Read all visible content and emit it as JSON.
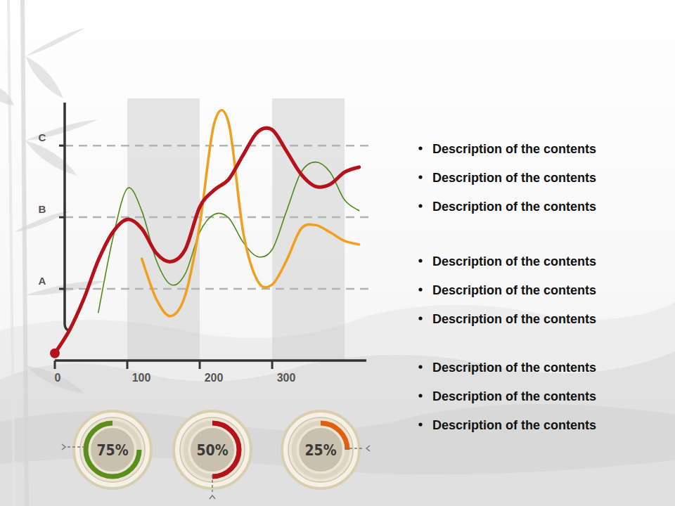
{
  "chart_data": [
    {
      "type": "line",
      "x": [
        0,
        20,
        40,
        60,
        80,
        100,
        120,
        140,
        160,
        180,
        200,
        220,
        240,
        260,
        280,
        300,
        320,
        340,
        360,
        380,
        400,
        420
      ],
      "xlim": [
        0,
        430
      ],
      "xticks": [
        0,
        100,
        200,
        300
      ],
      "ylim": [
        0,
        3.6
      ],
      "yticks": [
        {
          "value": 1,
          "label": "A"
        },
        {
          "value": 2,
          "label": "B"
        },
        {
          "value": 3,
          "label": "C"
        }
      ],
      "grid": true,
      "series": [
        {
          "color": "#b5121b",
          "marker": "start",
          "values": [
            0.1,
            0.42,
            0.86,
            1.4,
            1.79,
            1.97,
            1.84,
            1.5,
            1.38,
            1.55,
            2.14,
            2.38,
            2.53,
            2.87,
            3.19,
            3.22,
            2.92,
            2.6,
            2.43,
            2.46,
            2.63,
            2.7
          ]
        },
        {
          "color": "#4f8a1a",
          "values": [
            null,
            null,
            null,
            0.67,
            1.7,
            2.4,
            2.09,
            1.4,
            1.06,
            1.21,
            1.79,
            2.04,
            1.99,
            1.65,
            1.45,
            1.55,
            2.09,
            2.63,
            2.77,
            2.63,
            2.24,
            2.09
          ]
        },
        {
          "color": "#f0a020",
          "values": [
            null,
            null,
            null,
            null,
            null,
            null,
            1.42,
            0.86,
            0.62,
            0.91,
            1.89,
            3.31,
            3.31,
            1.79,
            1.11,
            1.06,
            1.4,
            1.84,
            1.89,
            1.79,
            1.67,
            1.62
          ]
        }
      ]
    },
    {
      "type": "gauge",
      "ylim": [
        0,
        100
      ],
      "values": [
        75,
        50,
        25
      ],
      "value_labels": [
        "75%",
        "50%",
        "25%"
      ],
      "colors": [
        "#5a8f1c",
        "#b5121b",
        "#e0600f"
      ],
      "data_labels": true
    }
  ],
  "text": {
    "bullets": [
      [
        "Description of the contents",
        "Description of the contents",
        "Description of the contents"
      ],
      [
        "Description of the contents",
        "Description of the contents",
        "Description of the contents"
      ],
      [
        "Description of the contents",
        "Description of the contents",
        "Description of the contents"
      ]
    ]
  }
}
